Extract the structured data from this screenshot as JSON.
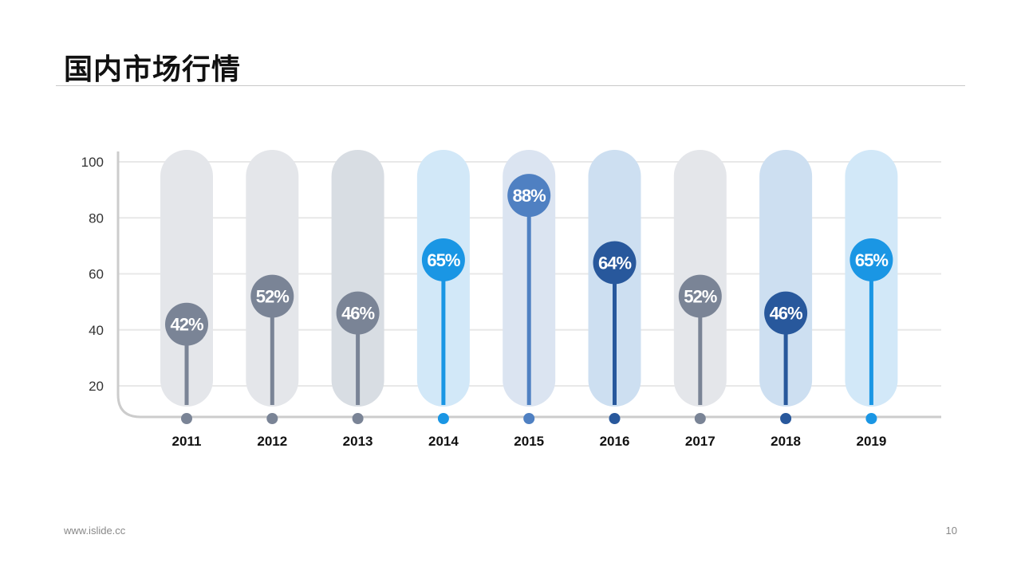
{
  "page": {
    "title": "国内市场行情",
    "footer_url": "www.islide.cc",
    "page_number": "10"
  },
  "colors": {
    "gray": "#7a8496",
    "gray_bg": "#e4e6ea",
    "slate_bg": "#d8dde3",
    "light_blue": "#1a96e4",
    "light_blue_bg": "#d2e8f8",
    "mid_blue": "#4f80c2",
    "mid_blue_bg": "#dbe4f1",
    "dark_blue": "#28589c",
    "dark_blue_bg": "#cddff1",
    "grid": "#e8e8e8",
    "axis": "#cccccc"
  },
  "chart_data": {
    "type": "lollipop",
    "categories": [
      "2011",
      "2012",
      "2013",
      "2014",
      "2015",
      "2016",
      "2017",
      "2018",
      "2019"
    ],
    "values": [
      42,
      52,
      46,
      65,
      88,
      64,
      52,
      46,
      65
    ],
    "labels": [
      "42%",
      "52%",
      "46%",
      "65%",
      "88%",
      "64%",
      "52%",
      "46%",
      "65%"
    ],
    "series_colors": [
      "gray",
      "gray",
      "gray",
      "light_blue",
      "mid_blue",
      "dark_blue",
      "gray",
      "dark_blue",
      "light_blue"
    ],
    "background_colors": [
      "gray_bg",
      "gray_bg",
      "slate_bg",
      "light_blue_bg",
      "mid_blue_bg",
      "dark_blue_bg",
      "gray_bg",
      "dark_blue_bg",
      "light_blue_bg"
    ],
    "y_ticks": [
      20,
      40,
      60,
      80,
      100
    ],
    "ylim": [
      10,
      100
    ],
    "grid": true,
    "legend": "none"
  }
}
